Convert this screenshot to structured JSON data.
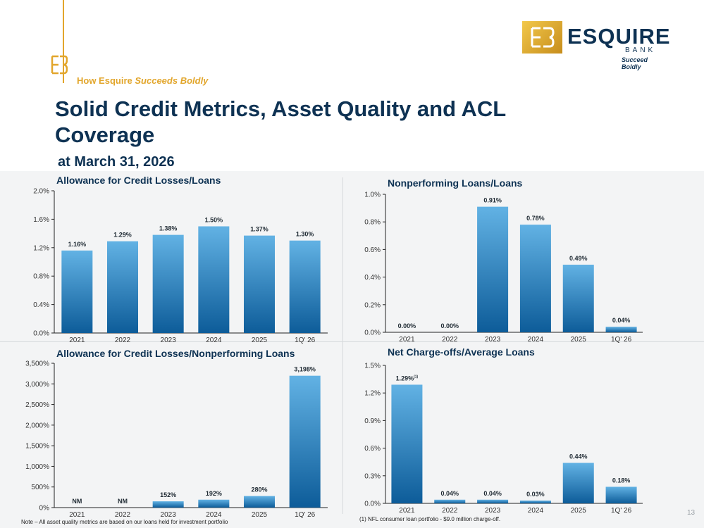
{
  "header": {
    "tagline_prefix": "How Esquire",
    "tagline_emphasis": "Succeeds Boldly",
    "title": "Solid Credit Metrics, Asset Quality and ACL Coverage",
    "subtitle": "at March 31, 2026"
  },
  "logo": {
    "name": "ESQUIRE",
    "bank": "BANK",
    "tagline": "Succeed Boldly"
  },
  "colors": {
    "navy": "#0e3253",
    "gold": "#e2a62c",
    "bar_top": "#62b2e4",
    "bar_bottom": "#0d5c99"
  },
  "chart_data": [
    {
      "type": "bar",
      "title": "Allowance for Credit Losses/Loans",
      "categories": [
        "2021",
        "2022",
        "2023",
        "2024",
        "2025",
        "1Q' 26"
      ],
      "values": [
        1.16,
        1.29,
        1.38,
        1.5,
        1.37,
        1.3
      ],
      "data_labels": [
        "1.16%",
        "1.29%",
        "1.38%",
        "1.50%",
        "1.37%",
        "1.30%"
      ],
      "ylim": [
        0,
        2.0
      ],
      "yticks": [
        0,
        0.4,
        0.8,
        1.2,
        1.6,
        2.0
      ],
      "ytick_labels": [
        "0.0%",
        "0.4%",
        "0.8%",
        "1.2%",
        "1.6%",
        "2.0%"
      ],
      "grid": false,
      "legend": "none"
    },
    {
      "type": "bar",
      "title": "Nonperforming Loans/Loans",
      "categories": [
        "2021",
        "2022",
        "2023",
        "2024",
        "2025",
        "1Q' 26"
      ],
      "values": [
        0.0,
        0.0,
        0.91,
        0.78,
        0.49,
        0.04
      ],
      "data_labels": [
        "0.00%",
        "0.00%",
        "0.91%",
        "0.78%",
        "0.49%",
        "0.04%"
      ],
      "ylim": [
        0,
        1.0
      ],
      "yticks": [
        0,
        0.2,
        0.4,
        0.6,
        0.8,
        1.0
      ],
      "ytick_labels": [
        "0.0%",
        "0.2%",
        "0.4%",
        "0.6%",
        "0.8%",
        "1.0%"
      ],
      "grid": false,
      "legend": "none"
    },
    {
      "type": "bar",
      "title": "Allowance for Credit Losses/Nonperforming Loans",
      "categories": [
        "2021",
        "2022",
        "2023",
        "2024",
        "2025",
        "1Q' 26"
      ],
      "values": [
        0,
        0,
        152,
        192,
        280,
        3198
      ],
      "data_labels": [
        "NM",
        "NM",
        "152%",
        "192%",
        "280%",
        "3,198%"
      ],
      "ylim": [
        0,
        3500
      ],
      "yticks": [
        0,
        500,
        1000,
        1500,
        2000,
        2500,
        3000,
        3500
      ],
      "ytick_labels": [
        "0%",
        "500%",
        "1,000%",
        "1,500%",
        "2,000%",
        "2,500%",
        "3,000%",
        "3,500%"
      ],
      "grid": false,
      "legend": "none"
    },
    {
      "type": "bar",
      "title": "Net Charge-offs/Average Loans",
      "categories": [
        "2021",
        "2022",
        "2023",
        "2024",
        "2025",
        "1Q' 26"
      ],
      "values": [
        1.29,
        0.04,
        0.04,
        0.03,
        0.44,
        0.18
      ],
      "data_labels": [
        "1.29%",
        "0.04%",
        "0.04%",
        "0.03%",
        "0.44%",
        "0.18%"
      ],
      "label_superscripts": [
        "(1)",
        "",
        "",
        "",
        "",
        ""
      ],
      "ylim": [
        0,
        1.5
      ],
      "yticks": [
        0,
        0.3,
        0.6,
        0.9,
        1.2,
        1.5
      ],
      "ytick_labels": [
        "0.0%",
        "0.3%",
        "0.6%",
        "0.9%",
        "1.2%",
        "1.5%"
      ],
      "grid": false,
      "legend": "none"
    }
  ],
  "footnotes": {
    "note": "Note – All asset quality metrics are based on our loans held for investment portfolio",
    "nco": "(1) NFL consumer loan portfolio - $9.0 million charge-off."
  },
  "page_number": "13"
}
